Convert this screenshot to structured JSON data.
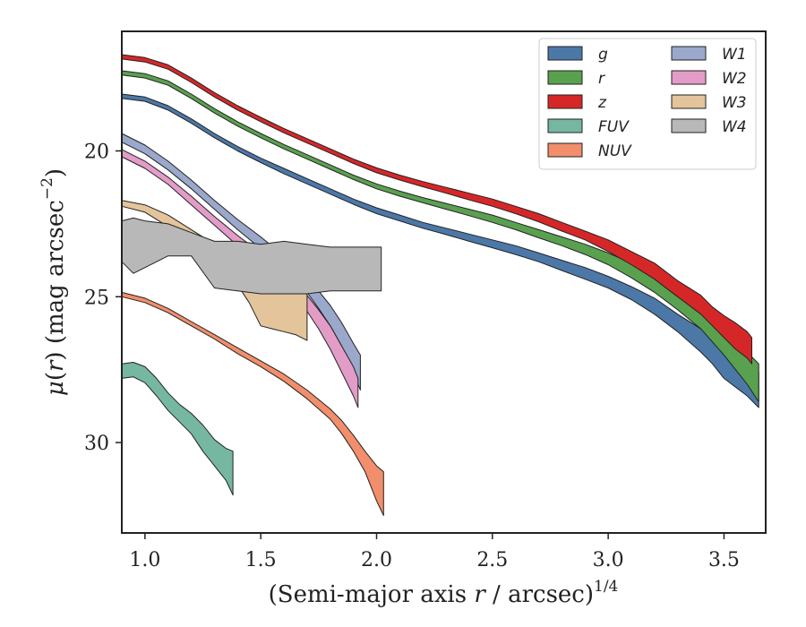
{
  "chart_data": {
    "type": "area",
    "title": "",
    "xlabel": "(Semi-major axis r / arcsec)^{1/4}",
    "xlabel_parts": {
      "pre": "(Semi-major axis ",
      "var": "r",
      "post": " / arcsec)",
      "sup": "1/4"
    },
    "ylabel": "μ(r) (mag arcsec^-2)",
    "ylabel_parts": {
      "mu": "μ",
      "open": "(",
      "var": "r",
      "close": ")",
      "rest": " (mag arcsec",
      "sup": "−2",
      "end": ")"
    },
    "xlim": [
      0.9,
      3.68
    ],
    "ylim": [
      33.1,
      15.9
    ],
    "y_inverted": true,
    "xticks": [
      "1.0",
      "1.5",
      "2.0",
      "2.5",
      "3.0",
      "3.5"
    ],
    "yticks": [
      "20",
      "25",
      "30"
    ],
    "grid": false,
    "legend_position": "top-right",
    "legend_columns": 2,
    "series": [
      {
        "name": "g",
        "color": "#4c78a8",
        "x": [
          0.9,
          1.0,
          1.1,
          1.2,
          1.3,
          1.4,
          1.5,
          1.6,
          1.7,
          1.8,
          1.9,
          2.0,
          2.1,
          2.2,
          2.3,
          2.4,
          2.5,
          2.6,
          2.7,
          2.8,
          2.9,
          3.0,
          3.1,
          3.2,
          3.3,
          3.4,
          3.45,
          3.5,
          3.55,
          3.6,
          3.65
        ],
        "lo": [
          18.05,
          18.15,
          18.45,
          18.9,
          19.4,
          19.85,
          20.25,
          20.6,
          20.95,
          21.3,
          21.65,
          21.95,
          22.2,
          22.45,
          22.65,
          22.85,
          23.05,
          23.25,
          23.5,
          23.75,
          24.0,
          24.3,
          24.65,
          25.05,
          25.6,
          26.1,
          26.4,
          26.7,
          26.9,
          27.2,
          27.6
        ],
        "hi": [
          18.2,
          18.3,
          18.6,
          19.05,
          19.55,
          20.0,
          20.4,
          20.78,
          21.13,
          21.48,
          21.83,
          22.15,
          22.4,
          22.65,
          22.87,
          23.1,
          23.32,
          23.55,
          23.8,
          24.1,
          24.4,
          24.7,
          25.1,
          25.6,
          26.2,
          26.9,
          27.3,
          27.8,
          28.1,
          28.4,
          28.8
        ]
      },
      {
        "name": "r",
        "color": "#59a14f",
        "x": [
          0.9,
          1.0,
          1.1,
          1.2,
          1.3,
          1.4,
          1.5,
          1.6,
          1.7,
          1.8,
          1.9,
          2.0,
          2.1,
          2.2,
          2.3,
          2.4,
          2.5,
          2.6,
          2.7,
          2.8,
          2.9,
          3.0,
          3.1,
          3.2,
          3.3,
          3.4,
          3.45,
          3.5,
          3.55,
          3.6,
          3.65
        ],
        "lo": [
          17.25,
          17.35,
          17.6,
          18.05,
          18.55,
          19.0,
          19.4,
          19.78,
          20.13,
          20.48,
          20.83,
          21.13,
          21.38,
          21.6,
          21.8,
          22.0,
          22.2,
          22.45,
          22.7,
          22.95,
          23.2,
          23.5,
          23.85,
          24.25,
          24.8,
          25.35,
          25.7,
          26.05,
          26.4,
          26.9,
          27.3
        ],
        "hi": [
          17.4,
          17.5,
          17.75,
          18.2,
          18.7,
          19.15,
          19.55,
          19.93,
          20.28,
          20.63,
          20.98,
          21.3,
          21.55,
          21.78,
          22.0,
          22.22,
          22.45,
          22.7,
          22.98,
          23.25,
          23.55,
          23.9,
          24.35,
          24.85,
          25.45,
          26.1,
          26.55,
          27.0,
          27.5,
          28.0,
          28.6
        ]
      },
      {
        "name": "z",
        "color": "#d62728",
        "x": [
          0.9,
          1.0,
          1.1,
          1.2,
          1.3,
          1.4,
          1.5,
          1.6,
          1.7,
          1.8,
          1.9,
          2.0,
          2.1,
          2.2,
          2.3,
          2.4,
          2.5,
          2.6,
          2.7,
          2.8,
          2.9,
          3.0,
          3.1,
          3.2,
          3.3,
          3.4,
          3.45,
          3.5,
          3.55,
          3.6,
          3.62
        ],
        "lo": [
          16.7,
          16.8,
          17.05,
          17.5,
          18.0,
          18.45,
          18.85,
          19.23,
          19.58,
          19.93,
          20.28,
          20.58,
          20.83,
          21.05,
          21.25,
          21.45,
          21.65,
          21.9,
          22.15,
          22.45,
          22.75,
          23.05,
          23.45,
          23.85,
          24.45,
          24.95,
          25.35,
          25.65,
          25.9,
          26.2,
          26.4
        ],
        "hi": [
          16.85,
          16.95,
          17.2,
          17.65,
          18.15,
          18.6,
          19.0,
          19.38,
          19.73,
          20.08,
          20.43,
          20.75,
          21.0,
          21.23,
          21.45,
          21.68,
          21.9,
          22.15,
          22.43,
          22.75,
          23.05,
          23.45,
          23.9,
          24.4,
          25.0,
          25.6,
          26.0,
          26.4,
          26.8,
          27.1,
          27.3
        ]
      },
      {
        "name": "FUV",
        "color": "#76b7a2",
        "x": [
          0.9,
          0.95,
          1.0,
          1.05,
          1.1,
          1.15,
          1.2,
          1.25,
          1.3,
          1.35,
          1.38
        ],
        "lo": [
          27.3,
          27.25,
          27.4,
          27.8,
          28.3,
          28.7,
          29.0,
          29.4,
          29.9,
          30.2,
          30.3
        ],
        "hi": [
          27.8,
          27.75,
          27.95,
          28.4,
          28.9,
          29.3,
          29.7,
          30.3,
          30.8,
          31.3,
          31.8
        ]
      },
      {
        "name": "NUV",
        "color": "#f28e6b",
        "x": [
          0.9,
          1.0,
          1.1,
          1.2,
          1.3,
          1.4,
          1.5,
          1.6,
          1.7,
          1.8,
          1.85,
          1.9,
          1.95,
          2.0,
          2.03
        ],
        "lo": [
          24.85,
          25.05,
          25.4,
          25.85,
          26.3,
          26.75,
          27.2,
          27.65,
          28.2,
          28.85,
          29.25,
          29.75,
          30.3,
          30.8,
          31.0
        ],
        "hi": [
          25.0,
          25.2,
          25.55,
          26.0,
          26.45,
          26.95,
          27.4,
          27.9,
          28.5,
          29.2,
          29.7,
          30.3,
          31.0,
          32.0,
          32.5
        ]
      },
      {
        "name": "W1",
        "color": "#9aa8cc",
        "x": [
          0.9,
          1.0,
          1.1,
          1.2,
          1.3,
          1.4,
          1.5,
          1.6,
          1.7,
          1.75,
          1.8,
          1.85,
          1.9,
          1.93
        ],
        "lo": [
          19.4,
          19.8,
          20.35,
          21.0,
          21.7,
          22.35,
          22.95,
          23.6,
          24.35,
          24.8,
          25.3,
          25.9,
          26.6,
          27.0
        ],
        "hi": [
          19.7,
          20.1,
          20.65,
          21.3,
          22.0,
          22.7,
          23.35,
          24.05,
          24.85,
          25.4,
          26.0,
          26.7,
          27.6,
          28.2
        ]
      },
      {
        "name": "W2",
        "color": "#e39cc8",
        "x": [
          0.9,
          1.0,
          1.1,
          1.2,
          1.3,
          1.4,
          1.5,
          1.6,
          1.7,
          1.75,
          1.8,
          1.85,
          1.9,
          1.92
        ],
        "lo": [
          19.95,
          20.35,
          20.9,
          21.55,
          22.25,
          22.9,
          23.5,
          24.15,
          24.95,
          25.45,
          26.0,
          26.7,
          27.4,
          27.8
        ],
        "hi": [
          20.2,
          20.6,
          21.15,
          21.85,
          22.55,
          23.25,
          23.9,
          24.6,
          25.5,
          26.1,
          26.8,
          27.6,
          28.4,
          28.8
        ]
      },
      {
        "name": "W3",
        "color": "#e3c49b",
        "x": [
          0.9,
          1.0,
          1.1,
          1.2,
          1.3,
          1.35,
          1.4,
          1.45,
          1.5,
          1.55,
          1.6,
          1.65,
          1.7
        ],
        "lo": [
          21.7,
          21.85,
          22.2,
          22.7,
          23.2,
          23.3,
          23.4,
          23.7,
          24.0,
          24.1,
          24.3,
          24.4,
          24.5
        ],
        "hi": [
          21.9,
          22.1,
          22.6,
          23.2,
          23.8,
          24.2,
          24.6,
          25.2,
          26.0,
          26.1,
          26.2,
          26.3,
          26.5
        ]
      },
      {
        "name": "W4",
        "color": "#b8b8b8",
        "x": [
          0.9,
          0.95,
          1.0,
          1.1,
          1.2,
          1.3,
          1.4,
          1.5,
          1.6,
          1.7,
          1.8,
          1.9,
          2.0,
          2.02
        ],
        "lo": [
          22.4,
          22.3,
          22.4,
          22.5,
          22.8,
          23.1,
          23.1,
          23.2,
          23.1,
          23.2,
          23.3,
          23.3,
          23.3,
          23.3
        ],
        "hi": [
          23.8,
          24.2,
          24.0,
          23.6,
          23.6,
          24.7,
          24.8,
          24.9,
          24.9,
          24.9,
          24.8,
          24.8,
          24.8,
          24.8
        ]
      }
    ]
  }
}
